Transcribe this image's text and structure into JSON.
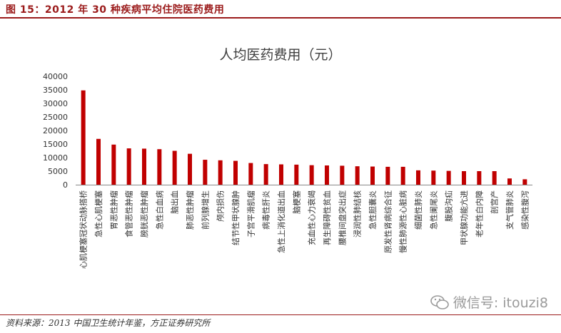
{
  "figure": {
    "title": "图 15：2012 年 30 种疾病平均住院医药费用",
    "source": "资料来源：2013 中国卫生统计年鉴，方正证券研究所",
    "watermark": "微信号: itouzi8"
  },
  "colors": {
    "bar": "#c00000",
    "accent": "#9b1b1b",
    "axis": "#888888"
  },
  "chart_data": {
    "type": "bar",
    "title": "人均医药费用（元）",
    "xlabel": "",
    "ylabel": "",
    "ylim": [
      0,
      40000
    ],
    "yticks": [
      0,
      5000,
      10000,
      15000,
      20000,
      25000,
      30000,
      35000,
      40000
    ],
    "grid": false,
    "categories": [
      "心肌梗塞冠状动脉搭桥",
      "急性心肌梗塞",
      "胃恶性肿瘤",
      "食管恶性肿瘤",
      "膀胱恶性肿瘤",
      "急性白血病",
      "脑出血",
      "肺恶性肿瘤",
      "前列腺增生",
      "颅内损伤",
      "结节性甲状腺肿",
      "子宫平滑肌瘤",
      "病毒性肝炎",
      "急性上消化道出血",
      "脑梗塞",
      "充血性心力衰竭",
      "再生障碍性贫血",
      "腰椎间盘突出症",
      "浸润性肺结核",
      "急性胆囊炎",
      "原发性肾病综合征",
      "慢性肺源性心脏病",
      "细菌性肺炎",
      "急性阑尾炎",
      "腹股沟疝",
      "甲状腺功能亢进",
      "老年性白内障",
      "剖宫产",
      "支气管肺炎",
      "感染性腹泻"
    ],
    "values": [
      34800,
      16900,
      14800,
      13400,
      13300,
      13100,
      12500,
      11400,
      9200,
      9000,
      8800,
      8000,
      7600,
      7500,
      7400,
      7200,
      7100,
      7000,
      6800,
      6700,
      6600,
      6600,
      5300,
      5200,
      5100,
      5000,
      5000,
      5000,
      2300,
      2000
    ]
  }
}
